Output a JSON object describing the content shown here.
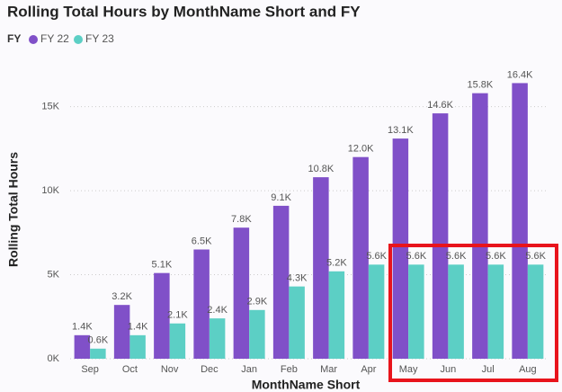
{
  "chart_data": {
    "type": "bar",
    "title": "Rolling Total Hours by MonthName Short and FY",
    "legend_title": "FY",
    "x_label": "MonthName Short",
    "y_label": "Rolling Total Hours",
    "categories": [
      "Sep",
      "Oct",
      "Nov",
      "Dec",
      "Jan",
      "Feb",
      "Mar",
      "Apr",
      "May",
      "Jun",
      "Jul",
      "Aug"
    ],
    "series": [
      {
        "name": "FY 22",
        "color": "#8050c8",
        "values": [
          1400,
          3200,
          5100,
          6500,
          7800,
          9100,
          10800,
          12000,
          13100,
          14600,
          15800,
          16400
        ],
        "value_labels": [
          "1.4K",
          "3.2K",
          "5.1K",
          "6.5K",
          "7.8K",
          "9.1K",
          "10.8K",
          "12.0K",
          "13.1K",
          "14.6K",
          "15.8K",
          "16.4K"
        ]
      },
      {
        "name": "FY 23",
        "color": "#5ccfc5",
        "values": [
          600,
          1400,
          2100,
          2400,
          2900,
          4300,
          5200,
          5600,
          5600,
          5600,
          5600,
          5600
        ],
        "value_labels": [
          "0.6K",
          "1.4K",
          "2.1K",
          "2.4K",
          "2.9K",
          "4.3K",
          "5.2K",
          "5.6K",
          "5.6K",
          "5.6K",
          "5.6K",
          "5.6K"
        ]
      }
    ],
    "ylim": [
      0,
      17600
    ],
    "yticks": [
      {
        "value": 0,
        "label": "0K"
      },
      {
        "value": 5000,
        "label": "5K"
      },
      {
        "value": 10000,
        "label": "10K"
      },
      {
        "value": 15000,
        "label": "15K"
      }
    ],
    "grid": true
  }
}
